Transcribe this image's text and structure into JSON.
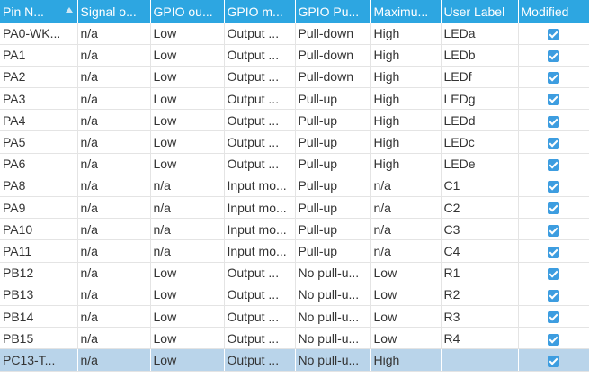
{
  "table": {
    "columns": [
      {
        "key": "pin",
        "label": "Pin N..."
      },
      {
        "key": "signal",
        "label": "Signal o..."
      },
      {
        "key": "gpio_output",
        "label": "GPIO ou..."
      },
      {
        "key": "gpio_mode",
        "label": "GPIO m..."
      },
      {
        "key": "gpio_pull",
        "label": "GPIO Pu..."
      },
      {
        "key": "max_speed",
        "label": "Maximu..."
      },
      {
        "key": "user_label",
        "label": "User Label"
      },
      {
        "key": "modified",
        "label": "Modified"
      }
    ],
    "sort": {
      "column": "pin",
      "direction": "ascending",
      "icon": "sort-ascending-icon"
    },
    "rows": [
      {
        "pin": "PA0-WK...",
        "signal": "n/a",
        "gpio_output": "Low",
        "gpio_mode": "Output ...",
        "gpio_pull": "Pull-down",
        "max_speed": "High",
        "user_label": "LEDa",
        "modified": true
      },
      {
        "pin": "PA1",
        "signal": "n/a",
        "gpio_output": "Low",
        "gpio_mode": "Output ...",
        "gpio_pull": "Pull-down",
        "max_speed": "High",
        "user_label": "LEDb",
        "modified": true
      },
      {
        "pin": "PA2",
        "signal": "n/a",
        "gpio_output": "Low",
        "gpio_mode": "Output ...",
        "gpio_pull": "Pull-down",
        "max_speed": "High",
        "user_label": "LEDf",
        "modified": true
      },
      {
        "pin": "PA3",
        "signal": "n/a",
        "gpio_output": "Low",
        "gpio_mode": "Output ...",
        "gpio_pull": "Pull-up",
        "max_speed": "High",
        "user_label": "LEDg",
        "modified": true
      },
      {
        "pin": "PA4",
        "signal": "n/a",
        "gpio_output": "Low",
        "gpio_mode": "Output ...",
        "gpio_pull": "Pull-up",
        "max_speed": "High",
        "user_label": "LEDd",
        "modified": true
      },
      {
        "pin": "PA5",
        "signal": "n/a",
        "gpio_output": "Low",
        "gpio_mode": "Output ...",
        "gpio_pull": "Pull-up",
        "max_speed": "High",
        "user_label": "LEDc",
        "modified": true
      },
      {
        "pin": "PA6",
        "signal": "n/a",
        "gpio_output": "Low",
        "gpio_mode": "Output ...",
        "gpio_pull": "Pull-up",
        "max_speed": "High",
        "user_label": "LEDe",
        "modified": true
      },
      {
        "pin": "PA8",
        "signal": "n/a",
        "gpio_output": "n/a",
        "gpio_mode": "Input mo...",
        "gpio_pull": "Pull-up",
        "max_speed": "n/a",
        "user_label": "C1",
        "modified": true
      },
      {
        "pin": "PA9",
        "signal": "n/a",
        "gpio_output": "n/a",
        "gpio_mode": "Input mo...",
        "gpio_pull": "Pull-up",
        "max_speed": "n/a",
        "user_label": "C2",
        "modified": true
      },
      {
        "pin": "PA10",
        "signal": "n/a",
        "gpio_output": "n/a",
        "gpio_mode": "Input mo...",
        "gpio_pull": "Pull-up",
        "max_speed": "n/a",
        "user_label": "C3",
        "modified": true
      },
      {
        "pin": "PA11",
        "signal": "n/a",
        "gpio_output": "n/a",
        "gpio_mode": "Input mo...",
        "gpio_pull": "Pull-up",
        "max_speed": "n/a",
        "user_label": "C4",
        "modified": true
      },
      {
        "pin": "PB12",
        "signal": "n/a",
        "gpio_output": "Low",
        "gpio_mode": "Output ...",
        "gpio_pull": "No pull-u...",
        "max_speed": "Low",
        "user_label": "R1",
        "modified": true
      },
      {
        "pin": "PB13",
        "signal": "n/a",
        "gpio_output": "Low",
        "gpio_mode": "Output ...",
        "gpio_pull": "No pull-u...",
        "max_speed": "Low",
        "user_label": "R2",
        "modified": true
      },
      {
        "pin": "PB14",
        "signal": "n/a",
        "gpio_output": "Low",
        "gpio_mode": "Output ...",
        "gpio_pull": "No pull-u...",
        "max_speed": "Low",
        "user_label": "R3",
        "modified": true
      },
      {
        "pin": "PB15",
        "signal": "n/a",
        "gpio_output": "Low",
        "gpio_mode": "Output ...",
        "gpio_pull": "No pull-u...",
        "max_speed": "Low",
        "user_label": "R4",
        "modified": true
      },
      {
        "pin": "PC13-T...",
        "signal": "n/a",
        "gpio_output": "Low",
        "gpio_mode": "Output ...",
        "gpio_pull": "No pull-u...",
        "max_speed": "High",
        "user_label": "",
        "modified": true
      }
    ],
    "selected_row": 15
  },
  "colors": {
    "header_bg": "#2da6e1",
    "header_text": "#ffffff",
    "selected_row_bg": "#b9d4ea",
    "checkbox_fill": "#3d9de0",
    "grid_line": "#e4e4e4"
  }
}
